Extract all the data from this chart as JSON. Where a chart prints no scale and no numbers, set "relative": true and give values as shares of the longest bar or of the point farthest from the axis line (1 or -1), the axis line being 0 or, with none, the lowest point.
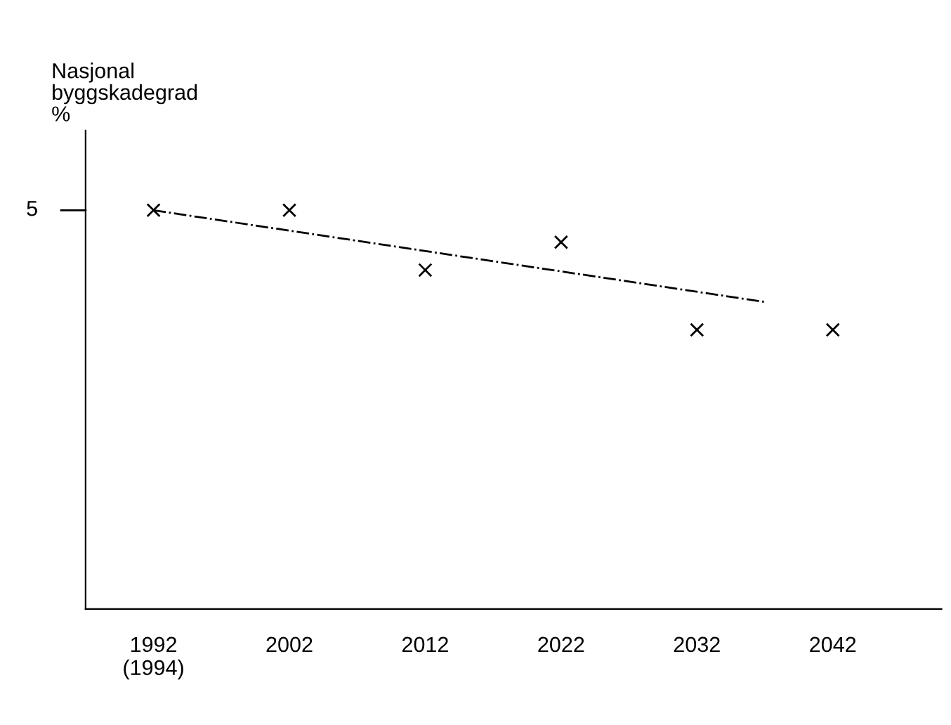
{
  "chart_data": {
    "type": "scatter",
    "ylabel": "Nasjonal\nbyggskadegrad\n%",
    "relative": true,
    "x": [
      1992,
      2002,
      2012,
      2022,
      2032,
      2042
    ],
    "xlim": [
      1987,
      2050
    ],
    "xticks": [
      {
        "value": 1992,
        "label": "1992\n(1994)"
      },
      2002,
      2012,
      2022,
      2032,
      2042
    ],
    "series": [
      {
        "color": "#000000",
        "marker": "cross",
        "values": [
          1.0,
          1.0,
          0.85,
          0.92,
          0.7,
          0.7
        ]
      },
      {
        "type": "line",
        "color": "#000000",
        "marker": "none",
        "line_style": "dashed",
        "x": [
          1992,
          2037
        ],
        "values": [
          1.0,
          0.77
        ]
      }
    ],
    "annotations": [
      "5"
    ],
    "grid": false,
    "legend": false
  }
}
